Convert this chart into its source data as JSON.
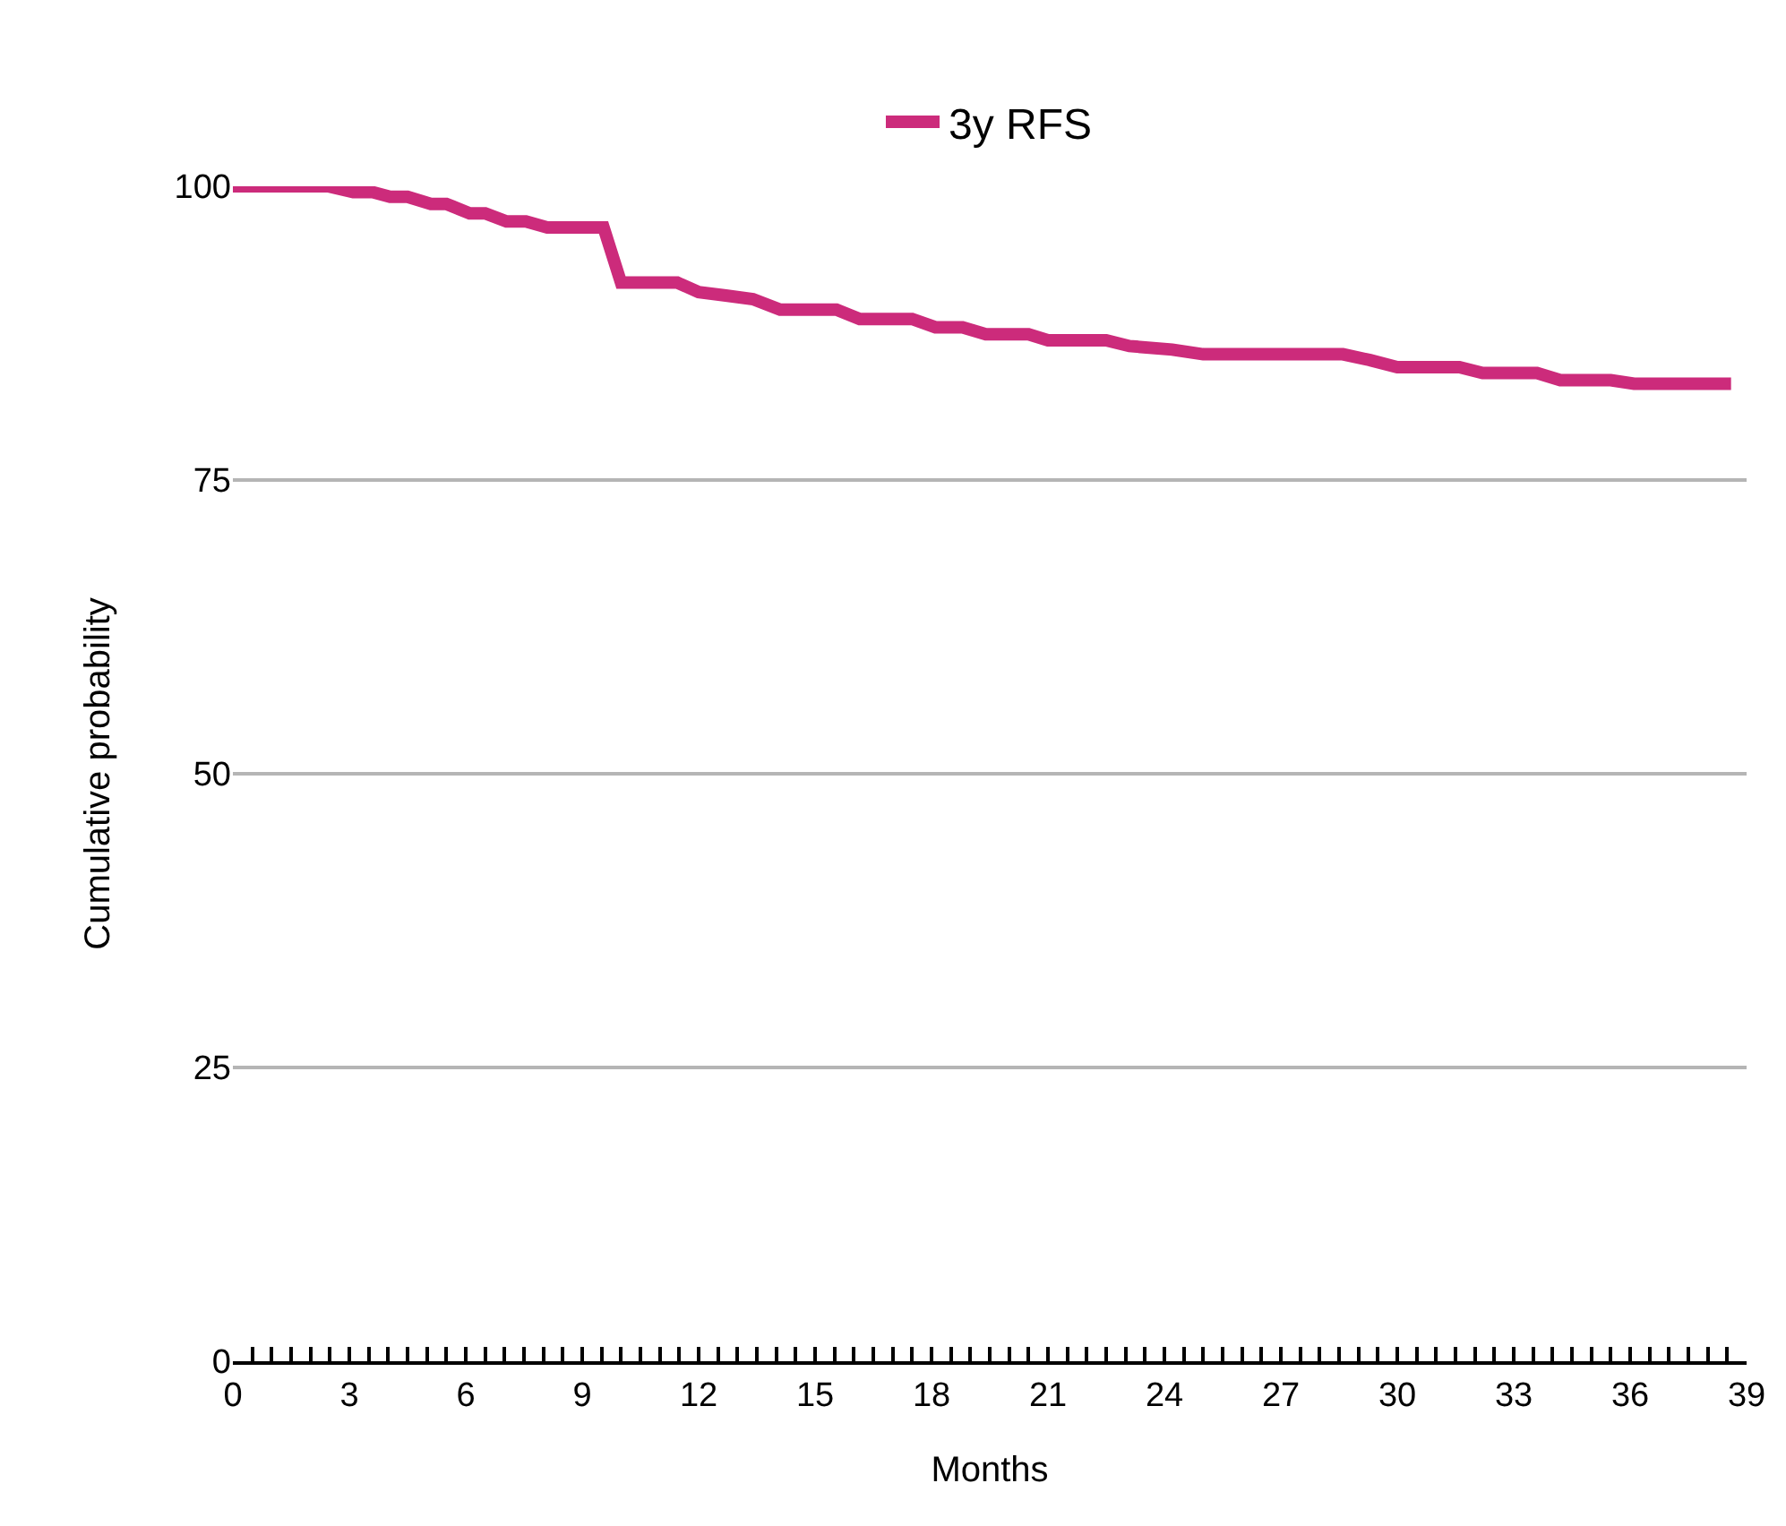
{
  "chart_data": {
    "type": "line",
    "xlabel": "Months",
    "ylabel": "Cumulative probability",
    "xlim": [
      0,
      39
    ],
    "xticks": [
      0,
      3,
      6,
      9,
      12,
      15,
      18,
      21,
      24,
      27,
      30,
      33,
      36,
      39
    ],
    "ylim": [
      0,
      100
    ],
    "yticks": [
      0,
      25,
      50,
      75,
      100
    ],
    "grid": "y",
    "legend": "top",
    "marker": "none",
    "line_style": "solid",
    "series": [
      {
        "name": "3y RFS",
        "color": "#cc2b7b",
        "x": [
          0,
          2.45,
          3.1,
          3.6,
          4.05,
          4.5,
          5.1,
          5.5,
          6.1,
          6.5,
          7.05,
          7.55,
          8.1,
          9.55,
          10,
          11.45,
          12,
          12.7,
          13.4,
          14.1,
          15.55,
          16.15,
          17.5,
          18.1,
          18.8,
          19.4,
          20.5,
          21,
          22.5,
          23.1,
          24.2,
          25,
          28.6,
          29.3,
          30,
          31.6,
          32.2,
          33.6,
          34.2,
          35.5,
          36.1,
          38.6
        ],
        "values": [
          100,
          100,
          99.5,
          99.5,
          99.1,
          99.1,
          98.5,
          98.5,
          97.7,
          97.7,
          97,
          97,
          96.5,
          96.5,
          91.8,
          91.8,
          91,
          90.7,
          90.4,
          89.5,
          89.5,
          88.7,
          88.7,
          88,
          88,
          87.4,
          87.4,
          86.9,
          86.9,
          86.4,
          86.1,
          85.7,
          85.7,
          85.2,
          84.6,
          84.6,
          84.1,
          84.1,
          83.5,
          83.5,
          83.2,
          83.2
        ]
      }
    ]
  }
}
